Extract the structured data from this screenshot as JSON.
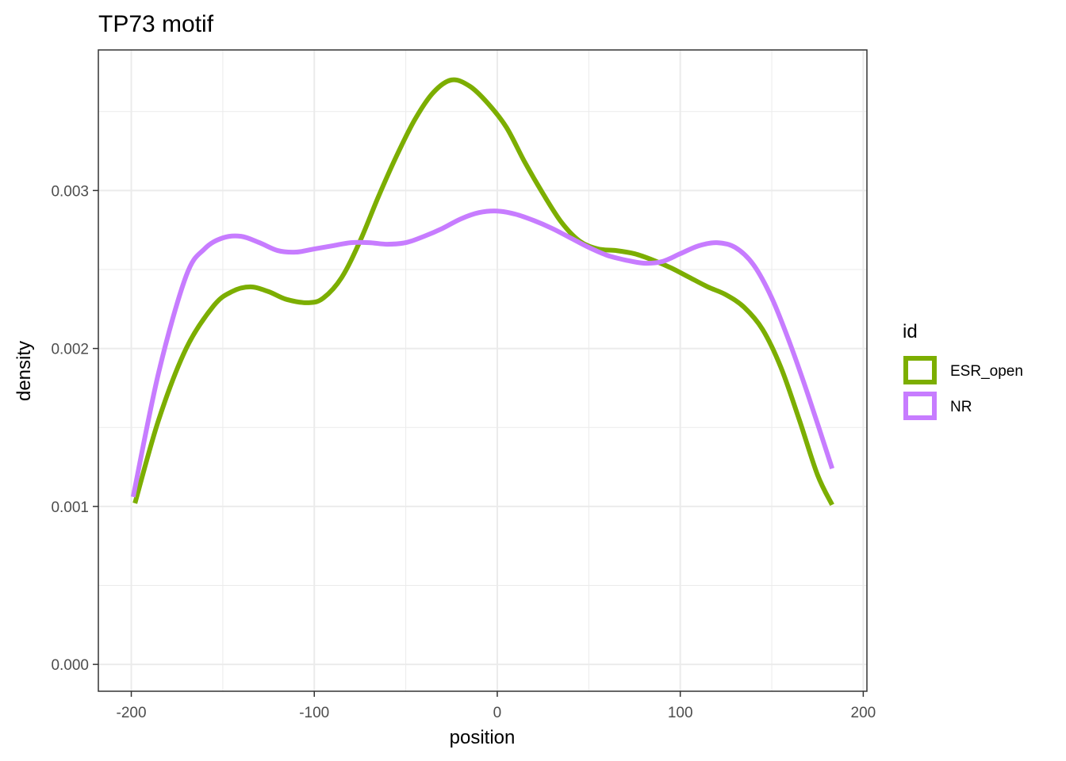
{
  "chart_data": {
    "type": "line",
    "title": "TP73 motif",
    "xlabel": "position",
    "ylabel": "density",
    "xlim": [
      -218,
      202
    ],
    "ylim": [
      -0.00017,
      0.00389
    ],
    "x_ticks": [
      -200,
      -100,
      0,
      100,
      200
    ],
    "x_tick_labels": [
      "-200",
      "-100",
      "0",
      "100",
      "200"
    ],
    "y_ticks": [
      0.0,
      0.001,
      0.002,
      0.003
    ],
    "y_tick_labels": [
      "0.000",
      "0.001",
      "0.002",
      "0.003"
    ],
    "grid": true,
    "legend_title": "id",
    "legend_position": "right",
    "series": [
      {
        "name": "ESR_open",
        "color": "#7cae00",
        "x": [
          -198,
          -185,
          -170,
          -155,
          -145,
          -135,
          -125,
          -115,
          -103,
          -95,
          -85,
          -75,
          -65,
          -55,
          -45,
          -35,
          -25,
          -15,
          -5,
          5,
          15,
          25,
          35,
          45,
          55,
          65,
          75,
          85,
          95,
          105,
          115,
          125,
          135,
          145,
          155,
          165,
          175,
          183
        ],
        "y": [
          0.00102,
          0.00155,
          0.002,
          0.00227,
          0.00236,
          0.00239,
          0.00236,
          0.00231,
          0.00229,
          0.00232,
          0.00245,
          0.00268,
          0.00296,
          0.00322,
          0.00345,
          0.00362,
          0.0037,
          0.00366,
          0.00355,
          0.0034,
          0.00318,
          0.00298,
          0.0028,
          0.00268,
          0.00263,
          0.00262,
          0.0026,
          0.00256,
          0.00251,
          0.00245,
          0.00239,
          0.00234,
          0.00226,
          0.00212,
          0.00188,
          0.00155,
          0.0012,
          0.00101
        ]
      },
      {
        "name": "NR",
        "color": "#c77cff",
        "x": [
          -199,
          -185,
          -170,
          -160,
          -150,
          -140,
          -130,
          -120,
          -110,
          -100,
          -90,
          -80,
          -70,
          -60,
          -50,
          -40,
          -30,
          -20,
          -10,
          0,
          10,
          20,
          30,
          40,
          50,
          60,
          70,
          80,
          90,
          100,
          110,
          120,
          130,
          140,
          150,
          160,
          170,
          183
        ],
        "y": [
          0.00106,
          0.00185,
          0.00246,
          0.00263,
          0.0027,
          0.00271,
          0.00267,
          0.00262,
          0.00261,
          0.00263,
          0.00265,
          0.00267,
          0.00267,
          0.00266,
          0.00267,
          0.00271,
          0.00276,
          0.00282,
          0.00286,
          0.00287,
          0.00285,
          0.00281,
          0.00276,
          0.0027,
          0.00264,
          0.00259,
          0.00256,
          0.00254,
          0.00255,
          0.0026,
          0.00265,
          0.00267,
          0.00264,
          0.00253,
          0.00232,
          0.00203,
          0.0017,
          0.00124
        ]
      }
    ]
  }
}
